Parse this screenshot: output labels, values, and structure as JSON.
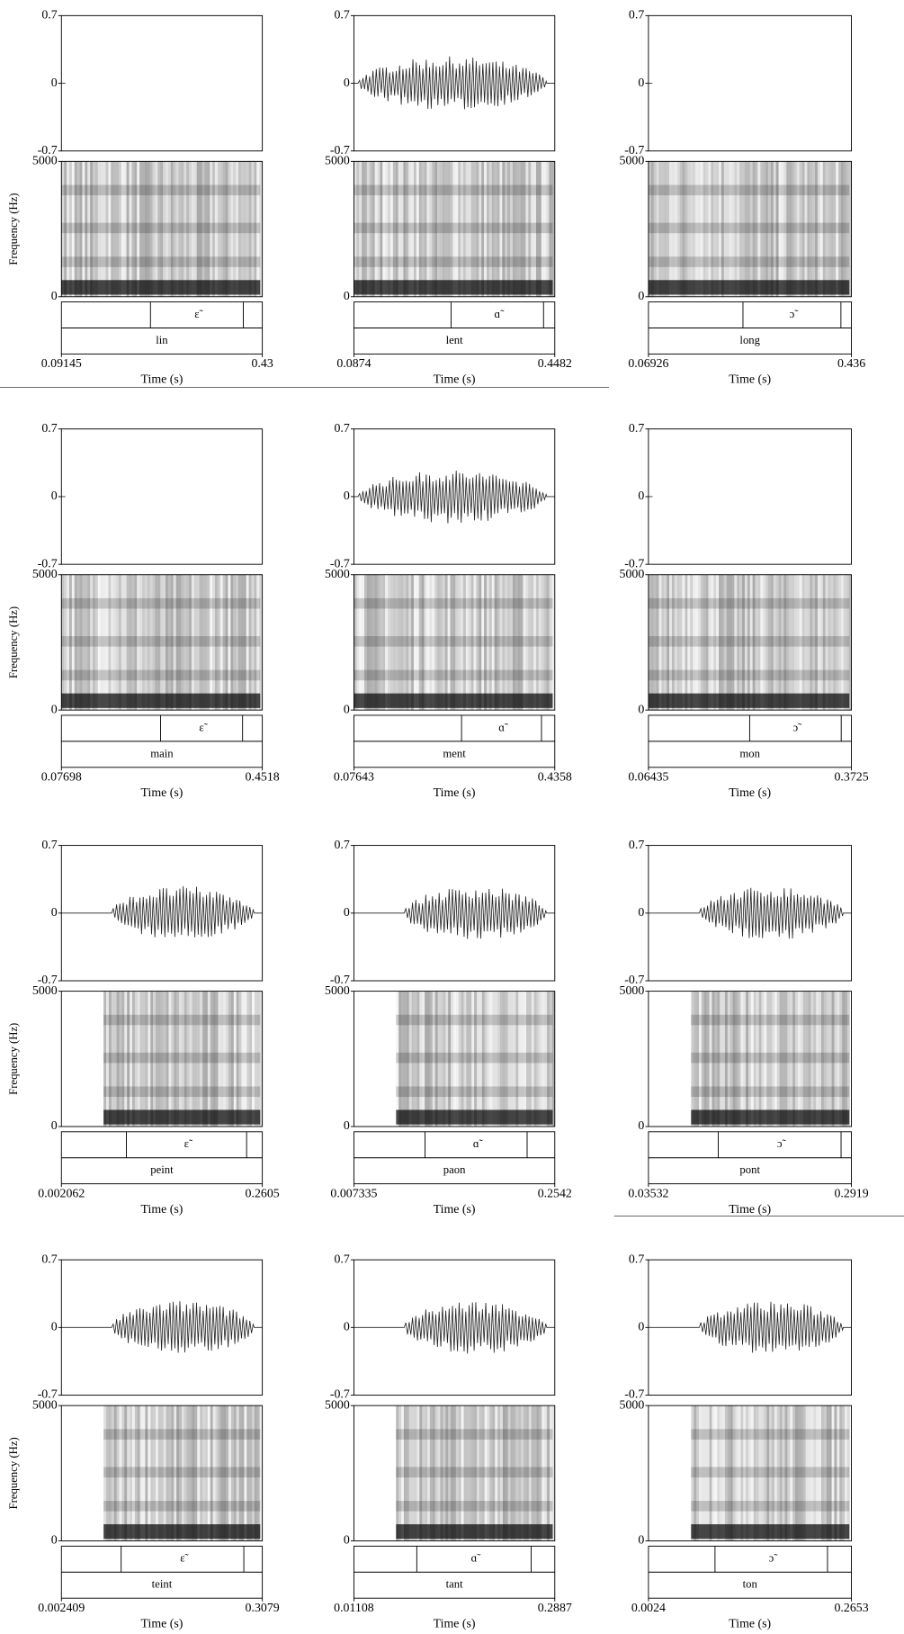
{
  "chart_data": [
    {
      "type": "praat",
      "waveform": {
        "ylim": [
          -0.7,
          0.7
        ],
        "yticks": [
          0.7,
          0,
          -0.7
        ]
      },
      "spectrogram": {
        "ylabel": "Frequency (Hz)",
        "ylim": [
          0,
          5000
        ],
        "yticks": [
          5000,
          0
        ]
      },
      "xlim": [
        0.09145,
        0.43
      ],
      "xticks": [
        0.09145,
        0.43
      ],
      "xlabel": "Time (s)",
      "vowel": {
        "label": "ɛ̃",
        "interval": [
          0.2415,
          0.398
        ]
      },
      "word": "lin"
    },
    {
      "type": "praat",
      "waveform": {
        "ylim": [
          -0.7,
          0.7
        ],
        "yticks": [
          0.7,
          0,
          -0.7
        ]
      },
      "spectrogram": {
        "ylim": [
          0,
          5000
        ],
        "yticks": [
          5000,
          0
        ]
      },
      "xlim": [
        0.0874,
        0.4482
      ],
      "xticks": [
        0.0874,
        0.4482
      ],
      "xlabel": "Time (s)",
      "vowel": {
        "label": "ɑ̃",
        "interval": [
          0.262,
          0.428
        ]
      },
      "word": "lent"
    },
    {
      "type": "praat",
      "waveform": {
        "ylim": [
          -0.7,
          0.7
        ],
        "yticks": [
          0.7,
          0,
          -0.7
        ]
      },
      "spectrogram": {
        "ylim": [
          0,
          5000
        ],
        "yticks": [
          5000,
          0
        ]
      },
      "xlim": [
        0.06926,
        0.436
      ],
      "xticks": [
        0.06926,
        0.436
      ],
      "xlabel": "Time (s)",
      "vowel": {
        "label": "ɔ̃",
        "interval": [
          0.24,
          0.417
        ]
      },
      "word": "long"
    },
    {
      "type": "praat",
      "waveform": {
        "ylim": [
          -0.7,
          0.7
        ],
        "yticks": [
          0.7,
          0,
          -0.7
        ]
      },
      "spectrogram": {
        "ylabel": "Frequency (Hz)",
        "ylim": [
          0,
          5000
        ],
        "yticks": [
          5000,
          0
        ]
      },
      "xlim": [
        0.07698,
        0.4518
      ],
      "xticks": [
        0.07698,
        0.4518
      ],
      "xlabel": "Time (s)",
      "vowel": {
        "label": "ɛ̃",
        "interval": [
          0.262,
          0.415
        ]
      },
      "word": "main"
    },
    {
      "type": "praat",
      "waveform": {
        "ylim": [
          -0.7,
          0.7
        ],
        "yticks": [
          0.7,
          0,
          -0.7
        ]
      },
      "spectrogram": {
        "ylim": [
          0,
          5000
        ],
        "yticks": [
          5000,
          0
        ]
      },
      "xlim": [
        0.07643,
        0.4358
      ],
      "xticks": [
        0.07643,
        0.4358
      ],
      "xlabel": "Time (s)",
      "vowel": {
        "label": "ɑ̃",
        "interval": [
          0.269,
          0.412
        ]
      },
      "word": "ment"
    },
    {
      "type": "praat",
      "waveform": {
        "ylim": [
          -0.7,
          0.7
        ],
        "yticks": [
          0.7,
          0,
          -0.7
        ]
      },
      "spectrogram": {
        "ylim": [
          0,
          5000
        ],
        "yticks": [
          5000,
          0
        ]
      },
      "xlim": [
        0.06435,
        0.3725
      ],
      "xticks": [
        0.06435,
        0.3725
      ],
      "xlabel": "Time (s)",
      "vowel": {
        "label": "ɔ̃",
        "interval": [
          0.218,
          0.357
        ]
      },
      "word": "mon"
    },
    {
      "type": "praat",
      "waveform": {
        "ylim": [
          -0.7,
          0.7
        ],
        "yticks": [
          0.7,
          0,
          -0.7
        ]
      },
      "spectrogram": {
        "ylabel": "Frequency (Hz)",
        "ylim": [
          0,
          5000
        ],
        "yticks": [
          5000,
          0
        ]
      },
      "xlim": [
        0.002062,
        0.2605
      ],
      "xticks": [
        0.002062,
        0.2605
      ],
      "xlabel": "Time (s)",
      "vowel": {
        "label": "ɛ̃",
        "interval": [
          0.0856,
          0.2403
        ]
      },
      "word": "peint"
    },
    {
      "type": "praat",
      "waveform": {
        "ylim": [
          -0.7,
          0.7
        ],
        "yticks": [
          0.7,
          0,
          -0.7
        ]
      },
      "spectrogram": {
        "ylim": [
          0,
          5000
        ],
        "yticks": [
          5000,
          0
        ]
      },
      "xlim": [
        0.007335,
        0.2542
      ],
      "xticks": [
        0.007335,
        0.2542
      ],
      "xlabel": "Time (s)",
      "vowel": {
        "label": "ɑ̃",
        "interval": [
          0.0947,
          0.2202
        ]
      },
      "word": "paon"
    },
    {
      "type": "praat",
      "waveform": {
        "ylim": [
          -0.7,
          0.7
        ],
        "yticks": [
          0.7,
          0,
          -0.7
        ]
      },
      "spectrogram": {
        "ylim": [
          0,
          5000
        ],
        "yticks": [
          5000,
          0
        ]
      },
      "xlim": [
        0.03532,
        0.2919
      ],
      "xticks": [
        0.03532,
        0.2919
      ],
      "xlabel": "Time (s)",
      "vowel": {
        "label": "ɔ̃",
        "interval": [
          0.1235,
          0.2788
        ]
      },
      "word": "pont"
    },
    {
      "type": "praat",
      "waveform": {
        "ylim": [
          -0.7,
          0.7
        ],
        "yticks": [
          0.7,
          0,
          -0.7
        ]
      },
      "spectrogram": {
        "ylabel": "Frequency (Hz)",
        "ylim": [
          0,
          5000
        ],
        "yticks": [
          5000,
          0
        ]
      },
      "xlim": [
        0.002409,
        0.3079
      ],
      "xticks": [
        0.002409,
        0.3079
      ],
      "xlabel": "Time (s)",
      "vowel": {
        "label": "ɛ̃",
        "interval": [
          0.0932,
          0.2798
        ]
      },
      "word": "teint"
    },
    {
      "type": "praat",
      "waveform": {
        "ylim": [
          -0.7,
          0.7
        ],
        "yticks": [
          0.7,
          0,
          -0.7
        ]
      },
      "spectrogram": {
        "ylim": [
          0,
          5000
        ],
        "yticks": [
          5000,
          0
        ]
      },
      "xlim": [
        0.01108,
        0.2887
      ],
      "xticks": [
        0.01108,
        0.2887
      ],
      "xlabel": "Time (s)",
      "vowel": {
        "label": "ɑ̃",
        "interval": [
          0.098,
          0.256
        ]
      },
      "word": "tant"
    },
    {
      "type": "praat",
      "waveform": {
        "ylim": [
          -0.7,
          0.7
        ],
        "yticks": [
          0.7,
          0,
          -0.7
        ]
      },
      "spectrogram": {
        "ylim": [
          0,
          5000
        ],
        "yticks": [
          5000,
          0
        ]
      },
      "xlim": [
        0.0024,
        0.2653
      ],
      "xticks": [
        0.0024,
        0.2653
      ],
      "xlabel": "Time (s)",
      "vowel": {
        "label": "ɔ̃",
        "interval": [
          0.0886,
          0.2343
        ]
      },
      "word": "ton"
    }
  ]
}
